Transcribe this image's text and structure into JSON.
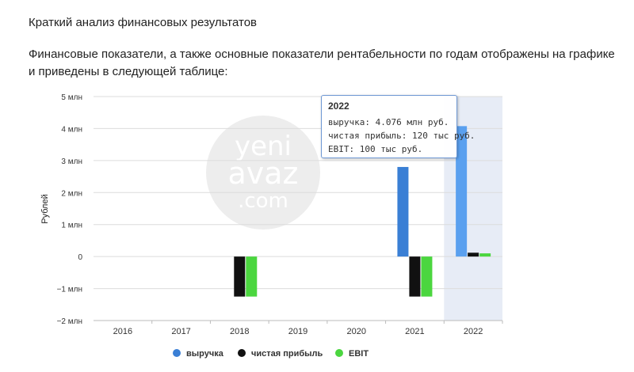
{
  "page": {
    "heading": "Краткий анализ финансовых результатов",
    "paragraph": "Финансовые показатели, а также основные показатели рентабельности по годам отображены на графике и приведены в следующей таблице:"
  },
  "watermark": [
    "yeni",
    "avaz",
    ".com"
  ],
  "colors": {
    "revenue": "#3a7fd5",
    "revenue_highlight": "#5aa0ef",
    "net_profit": "#111111",
    "ebit": "#4bd63f",
    "hover_band": "#e3e9f4",
    "tooltip_border": "#6e98d4"
  },
  "tooltip": {
    "title": "2022",
    "rows": [
      "выручка: 4.076 млн руб.",
      "чистая прибыль: 120 тыс руб.",
      "EBIT: 100 тыс руб."
    ]
  },
  "chart_data": {
    "type": "bar",
    "ylabel": "Рублей",
    "ylim": [
      -2000000,
      5000000
    ],
    "yticks": [
      {
        "value": 5000000,
        "label": "5 млн"
      },
      {
        "value": 4000000,
        "label": "4 млн"
      },
      {
        "value": 3000000,
        "label": "3 млн"
      },
      {
        "value": 2000000,
        "label": "2 млн"
      },
      {
        "value": 1000000,
        "label": "1 млн"
      },
      {
        "value": 0,
        "label": "0"
      },
      {
        "value": -1000000,
        "label": "−1 млн"
      },
      {
        "value": -2000000,
        "label": "−2 млн"
      }
    ],
    "categories": [
      "2016",
      "2017",
      "2018",
      "2019",
      "2020",
      "2021",
      "2022"
    ],
    "highlighted_category": "2022",
    "legend_position": "bottom",
    "series": [
      {
        "name": "выручка",
        "values": [
          0,
          0,
          0,
          0,
          0,
          2800000,
          4076000
        ]
      },
      {
        "name": "чистая прибыль",
        "values": [
          0,
          0,
          -1250000,
          0,
          0,
          -1250000,
          120000
        ]
      },
      {
        "name": "EBIT",
        "values": [
          0,
          0,
          -1250000,
          0,
          0,
          -1250000,
          100000
        ]
      }
    ]
  }
}
